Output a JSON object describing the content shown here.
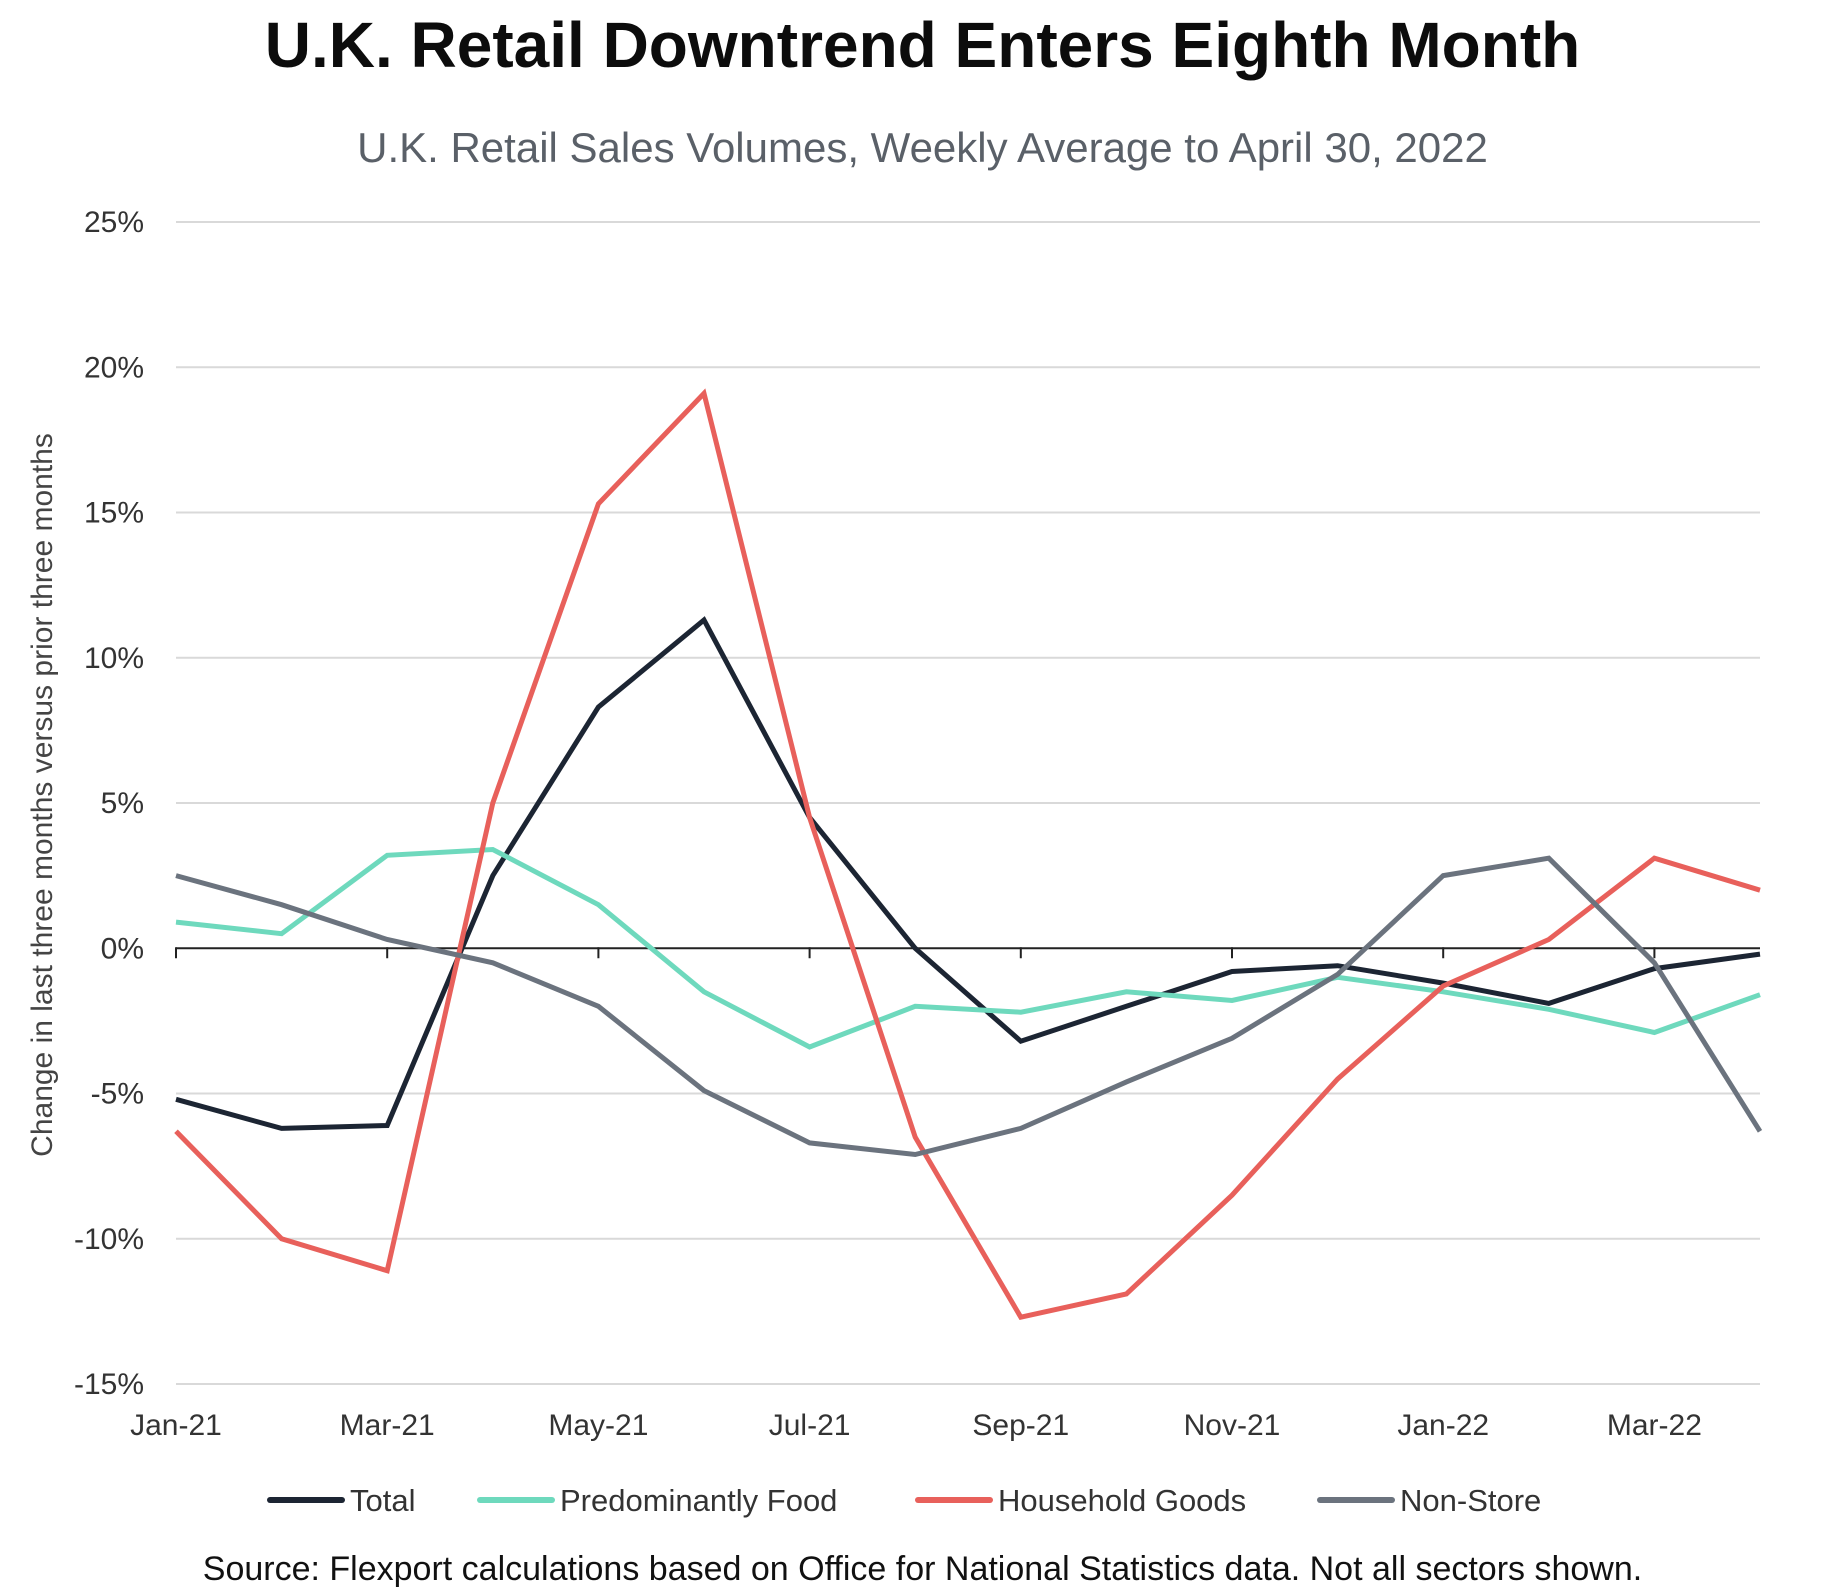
{
  "chart_data": {
    "type": "line",
    "title": "U.K. Retail Downtrend Enters Eighth Month",
    "subtitle": "U.K. Retail Sales Volumes, Weekly Average to April 30, 2022",
    "xlabel": "",
    "ylabel": "Change in last three months versus prior three months",
    "ylim": [
      -15,
      25
    ],
    "yticks": [
      25,
      20,
      15,
      10,
      5,
      0,
      -5,
      -10,
      -15
    ],
    "ytick_labels": [
      "25%",
      "20%",
      "15%",
      "10%",
      "5%",
      "0%",
      "-5%",
      "-10%",
      "-15%"
    ],
    "categories": [
      "Jan-21",
      "Feb-21",
      "Mar-21",
      "Apr-21",
      "May-21",
      "Jun-21",
      "Jul-21",
      "Aug-21",
      "Sep-21",
      "Oct-21",
      "Nov-21",
      "Dec-21",
      "Jan-22",
      "Feb-22",
      "Mar-22",
      "Apr-22"
    ],
    "xtick_labels": [
      "Jan-21",
      "",
      "Mar-21",
      "",
      "May-21",
      "",
      "Jul-21",
      "",
      "Sep-21",
      "",
      "Nov-21",
      "",
      "Jan-22",
      "",
      "Mar-22",
      ""
    ],
    "grid": true,
    "legend_position": "bottom",
    "series": [
      {
        "name": "Total",
        "color": "#1c2533",
        "values": [
          -5.2,
          -6.2,
          -6.1,
          2.5,
          8.3,
          11.3,
          4.5,
          0,
          -3.2,
          -2.0,
          -0.8,
          -0.6,
          -1.2,
          -1.9,
          -0.7,
          -0.2
        ]
      },
      {
        "name": "Predominantly Food",
        "color": "#6ed9bd",
        "values": [
          0.9,
          0.5,
          3.2,
          3.4,
          1.5,
          -1.5,
          -3.4,
          -2.0,
          -2.2,
          -1.5,
          -1.8,
          -1.0,
          -1.5,
          -2.1,
          -2.9,
          -1.6
        ]
      },
      {
        "name": "Household Goods",
        "color": "#e8605b",
        "values": [
          -6.3,
          -10.0,
          -11.1,
          5.0,
          15.3,
          19.1,
          4.5,
          -6.5,
          -12.7,
          -11.9,
          -8.5,
          -4.5,
          -1.3,
          0.3,
          3.1,
          2.0
        ]
      },
      {
        "name": "Non-Store",
        "color": "#6b737e",
        "values": [
          2.5,
          1.5,
          0.3,
          -0.5,
          -2.0,
          -4.9,
          -6.7,
          -7.1,
          -6.2,
          -4.6,
          -3.1,
          -0.9,
          2.5,
          3.1,
          -0.5,
          -6.3
        ]
      }
    ]
  },
  "source": "Source: Flexport calculations based on Office for National Statistics data. Not all sectors shown."
}
